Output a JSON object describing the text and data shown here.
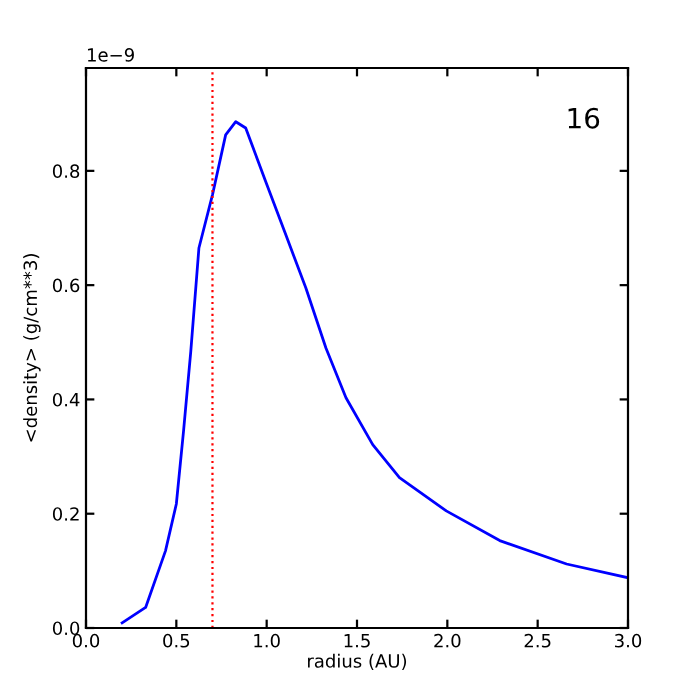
{
  "chart_data": {
    "type": "line",
    "xlabel": "radius (AU)",
    "ylabel": "<density> (g/cm**3)",
    "annotations": [
      "16",
      "1e−9"
    ],
    "series": [
      {
        "color": "#0000ff",
        "x": [
          0.2,
          0.33,
          0.44,
          0.5,
          0.54,
          0.58,
          0.625,
          0.7,
          0.773,
          0.829,
          0.884,
          0.995,
          1.106,
          1.217,
          1.328,
          1.439,
          1.587,
          1.735,
          1.994,
          2.29,
          2.66,
          3.0
        ],
        "values": [
          0.009,
          0.036,
          0.135,
          0.217,
          0.345,
          0.484,
          0.665,
          0.758,
          0.863,
          0.886,
          0.875,
          0.781,
          0.688,
          0.595,
          0.49,
          0.403,
          0.321,
          0.263,
          0.205,
          0.153,
          0.112,
          0.088
        ]
      }
    ],
    "ref_lines": [
      {
        "axis": "x",
        "value": 0.7,
        "color": "#ff0000",
        "line_style": "dotted"
      }
    ],
    "xlim": [
      0,
      3
    ],
    "xticks": [
      {
        "value": 0,
        "label": "0.0"
      },
      0.5,
      {
        "value": 1,
        "label": "1.0"
      },
      1.5,
      {
        "value": 2,
        "label": "2.0"
      },
      2.5,
      {
        "value": 3,
        "label": "3.0"
      }
    ],
    "ylim": [
      0,
      0.98
    ],
    "yticks": [
      {
        "value": 0,
        "label": "0.0"
      },
      0.2,
      0.4,
      0.6,
      0.8
    ],
    "grid": false,
    "legend": false,
    "marker": "none",
    "line_style": "solid"
  }
}
